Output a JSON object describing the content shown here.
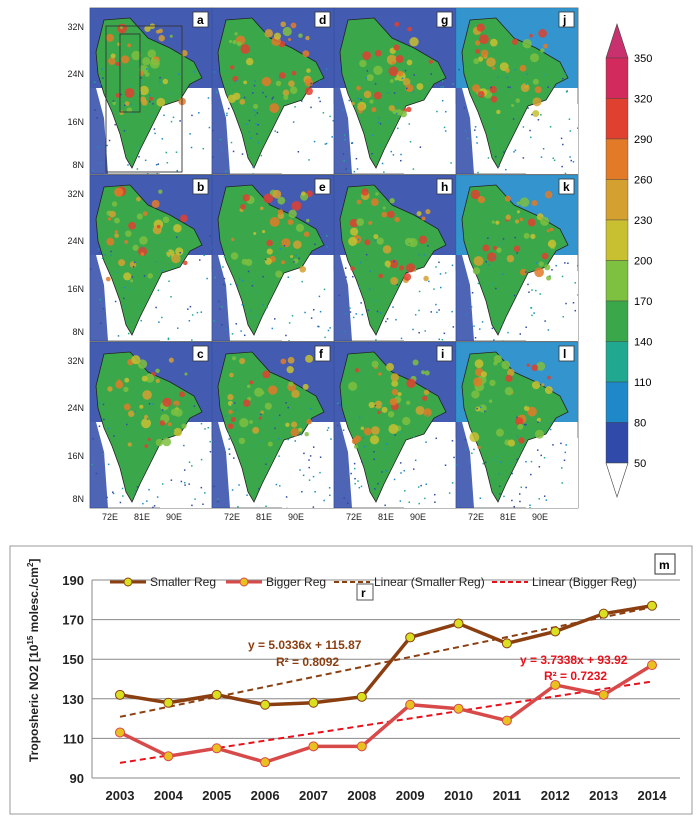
{
  "maps": {
    "panel_letters": [
      "a",
      "b",
      "c",
      "d",
      "e",
      "f",
      "g",
      "h",
      "i",
      "j",
      "k",
      "l"
    ],
    "lat_labels": [
      "32N",
      "24N",
      "16N",
      "8N"
    ],
    "lon_labels": [
      "72E",
      "81E",
      "90E"
    ],
    "colorbar_labels": [
      "350",
      "320",
      "290",
      "260",
      "230",
      "200",
      "170",
      "140",
      "110",
      "80",
      "50"
    ],
    "colorbar_colors": [
      "#d22a5c",
      "#e04030",
      "#e27a28",
      "#d4a030",
      "#c8c030",
      "#7ec040",
      "#3aa84a",
      "#20a890",
      "#1e88c8",
      "#2f4aa8",
      "#2d2b8e"
    ]
  },
  "chart": {
    "panel_letter": "m",
    "legend_letter": "r",
    "ylabel_main": "Troposheric NO2 [10",
    "ylabel_sup": "15",
    "ylabel_rest": " molesc./cm",
    "ylabel_sq": "2",
    "ylabel_end": "]",
    "eq_smaller": "y = 5.0336x + 115.87",
    "r2_smaller": "R² = 0.8092",
    "eq_bigger": "y = 3.7338x + 93.92",
    "r2_bigger": "R² = 0.7232",
    "legend": {
      "smaller": "Smaller Reg",
      "bigger": "Bigger Reg",
      "lin_smaller": "Linear (Smaller Reg)",
      "lin_bigger": "Linear (Bigger Reg)"
    },
    "colors": {
      "smaller": "#8b3f10",
      "smaller_marker": "#d8e020",
      "bigger": "#d84a4a",
      "bigger_marker": "#e8c020",
      "trend_smaller": "#8b3f10",
      "trend_bigger": "#e8101a"
    }
  },
  "chart_data": {
    "type": "line",
    "categories": [
      "2003",
      "2004",
      "2005",
      "2006",
      "2007",
      "2008",
      "2009",
      "2010",
      "2011",
      "2012",
      "2013",
      "2014"
    ],
    "series": [
      {
        "name": "Smaller Reg",
        "values": [
          132,
          128,
          132,
          127,
          128,
          131,
          161,
          168,
          158,
          164,
          173,
          177
        ]
      },
      {
        "name": "Bigger Reg",
        "values": [
          113,
          101,
          105,
          98,
          106,
          106,
          127,
          125,
          119,
          137,
          132,
          147
        ]
      }
    ],
    "trendlines": [
      {
        "name": "Linear (Smaller Reg)",
        "slope": 5.0336,
        "intercept": 115.87
      },
      {
        "name": "Linear (Bigger Reg)",
        "slope": 3.7338,
        "intercept": 93.92
      }
    ],
    "ylim": [
      90,
      190
    ],
    "yticks": [
      90,
      110,
      130,
      150,
      170,
      190
    ],
    "grid": true,
    "legend_position": "top"
  }
}
